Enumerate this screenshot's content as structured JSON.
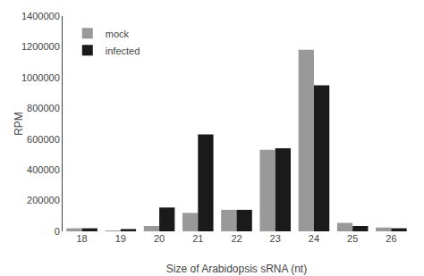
{
  "chart_data": {
    "type": "bar",
    "xlabel": "Size of Arabidopsis sRNA (nt)",
    "ylabel": "RPM",
    "categories": [
      "18",
      "19",
      "20",
      "21",
      "22",
      "23",
      "24",
      "25",
      "26"
    ],
    "series": [
      {
        "name": "mock",
        "color": "#999999",
        "values": [
          20000,
          5000,
          35000,
          120000,
          140000,
          530000,
          1180000,
          55000,
          25000
        ]
      },
      {
        "name": "infected",
        "color": "#1a1a1a",
        "values": [
          20000,
          15000,
          155000,
          630000,
          140000,
          540000,
          950000,
          35000,
          20000
        ]
      }
    ],
    "ylim": [
      0,
      1400000
    ],
    "yticks": [
      0,
      200000,
      400000,
      600000,
      800000,
      1000000,
      1200000,
      1400000
    ],
    "legend": "upper left",
    "grid": false
  }
}
